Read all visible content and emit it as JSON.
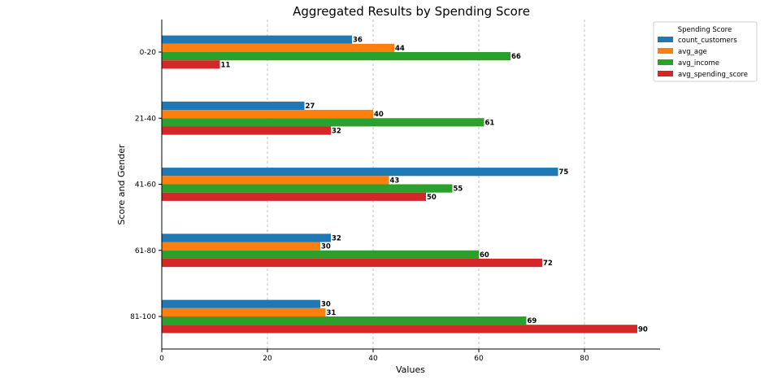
{
  "chart_data": {
    "type": "bar",
    "orientation": "horizontal",
    "title": "Aggregated Results by Spending Score",
    "xlabel": "Values",
    "ylabel": "Score and Gender",
    "xlim": [
      0,
      94
    ],
    "xticks": [
      0,
      20,
      40,
      60,
      80
    ],
    "grid": "x-dashed",
    "categories": [
      "0-20",
      "21-40",
      "41-60",
      "61-80",
      "81-100"
    ],
    "series": [
      {
        "name": "count_customers",
        "color": "#1f77b4",
        "values": [
          36,
          27,
          75,
          32,
          30
        ]
      },
      {
        "name": "avg_age",
        "color": "#ff7f0e",
        "values": [
          44,
          40,
          43,
          30,
          31
        ]
      },
      {
        "name": "avg_income",
        "color": "#2ca02c",
        "values": [
          66,
          61,
          55,
          60,
          69
        ]
      },
      {
        "name": "avg_spending_score",
        "color": "#d62728",
        "values": [
          11,
          32,
          50,
          72,
          90
        ]
      }
    ],
    "legend": {
      "title": "Spending Score",
      "position": "top-right"
    }
  }
}
